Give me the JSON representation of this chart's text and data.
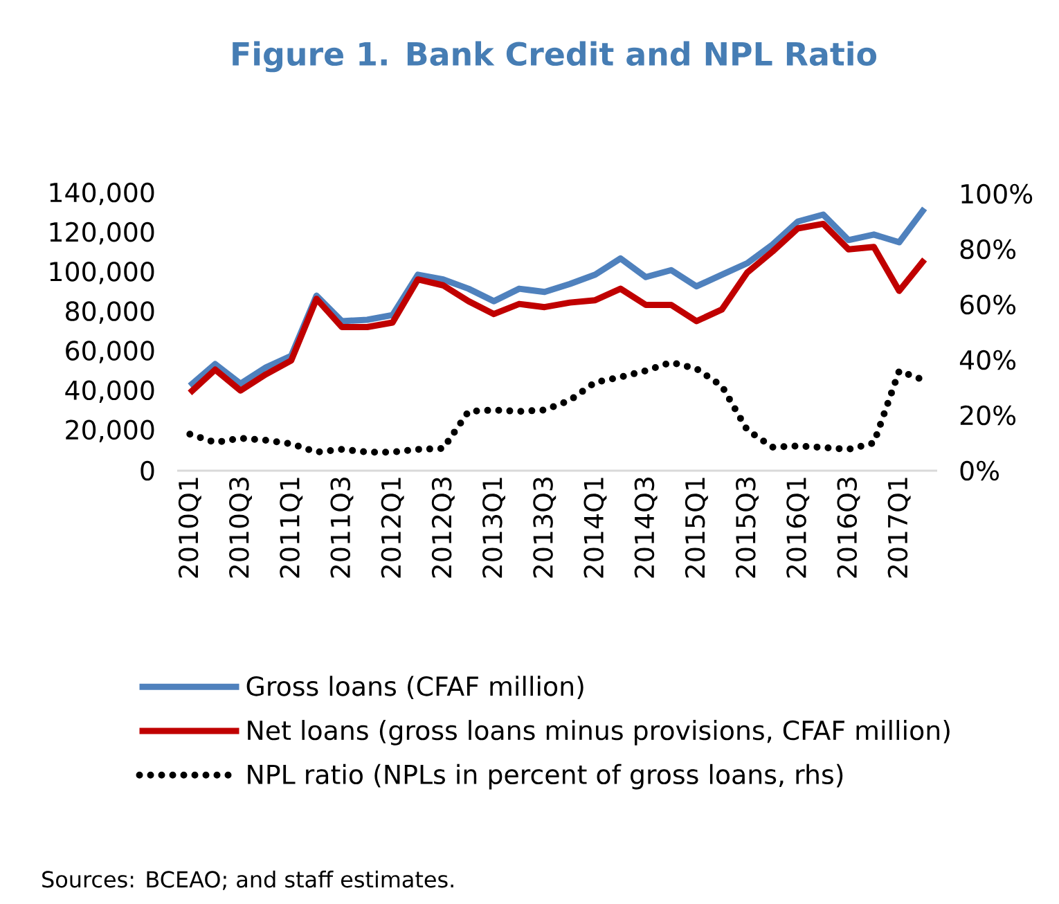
{
  "chart_data": {
    "type": "line",
    "title": "Figure 1. Bank Credit and NPL Ratio",
    "categories": [
      "2010Q1",
      null,
      "2010Q3",
      null,
      "2011Q1",
      null,
      "2011Q3",
      null,
      "2012Q1",
      null,
      "2012Q3",
      null,
      "2013Q1",
      null,
      "2013Q3",
      null,
      "2014Q1",
      null,
      "2014Q3",
      null,
      "2015Q1",
      null,
      "2015Q3",
      null,
      "2016Q1",
      null,
      "2016Q3",
      null,
      "2017Q1",
      null
    ],
    "series": [
      {
        "name": "Gross loans (CFAF million)",
        "color": "#4f81bd",
        "line_style": "solid",
        "values": [
          42900,
          53900,
          44000,
          52200,
          58100,
          88500,
          75600,
          76300,
          78700,
          99100,
          96700,
          92000,
          85700,
          92000,
          90400,
          94400,
          99100,
          107300,
          97900,
          101400,
          93200,
          99100,
          104900,
          114300,
          126000,
          129500,
          116600,
          119400,
          115500,
          132600
        ]
      },
      {
        "name": "Net loans (gross loans minus provisions, CFAF million)",
        "color": "#c00000",
        "line_style": "solid",
        "values": [
          39300,
          51100,
          40500,
          48700,
          55700,
          86900,
          72600,
          72600,
          74900,
          96700,
          93700,
          85700,
          79200,
          84300,
          82700,
          85000,
          86200,
          92000,
          83800,
          83800,
          75600,
          81500,
          100200,
          110800,
          122500,
          124800,
          111900,
          113100,
          90900,
          106800
        ]
      },
      {
        "name": "NPL ratio (NPLs in percent of gross loans, rhs)",
        "color": "#000000",
        "line_style": "dotted",
        "axis": "y2",
        "values": [
          13.2,
          10.2,
          11.7,
          11.0,
          9.7,
          6.7,
          7.7,
          6.7,
          6.7,
          7.7,
          8.0,
          21.4,
          21.9,
          21.4,
          21.9,
          25.4,
          31.9,
          33.8,
          36.1,
          39.1,
          36.8,
          30.6,
          14.7,
          8.5,
          8.9,
          8.4,
          7.7,
          10.0,
          36.0,
          32.6
        ]
      }
    ],
    "ylim": [
      0,
      140000
    ],
    "yticks": [
      0,
      {
        "value": 20000,
        "label": "20,000"
      },
      {
        "value": 40000,
        "label": "40,000"
      },
      {
        "value": 60000,
        "label": "60,000"
      },
      {
        "value": 80000,
        "label": "80,000"
      },
      {
        "value": 100000,
        "label": "100,000"
      },
      {
        "value": 120000,
        "label": "120,000"
      },
      {
        "value": 140000,
        "label": "140,000"
      }
    ],
    "y2lim": [
      0,
      100
    ],
    "y2ticks": [
      {
        "value": 0,
        "label": "0%"
      },
      {
        "value": 20,
        "label": "20%"
      },
      {
        "value": 40,
        "label": "40%"
      },
      {
        "value": 60,
        "label": "60%"
      },
      {
        "value": 80,
        "label": "80%"
      },
      {
        "value": 100,
        "label": "100%"
      }
    ],
    "grid": false,
    "legend": "bottom",
    "marker": "none",
    "annotations": [
      "Sources: BCEAO; and staff estimates."
    ]
  }
}
